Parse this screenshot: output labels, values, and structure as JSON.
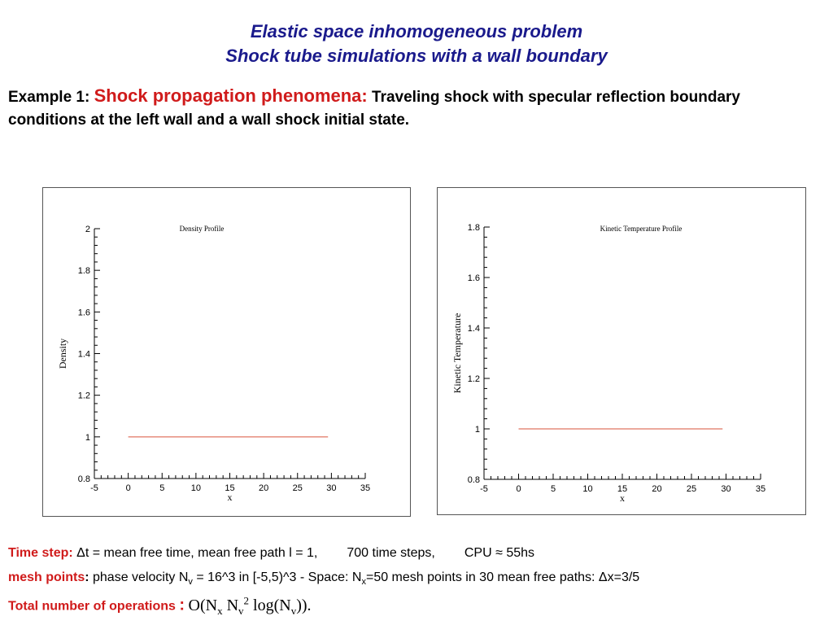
{
  "slide": {
    "title_line1": "Elastic space inhomogeneous problem",
    "title_line2": "Shock tube simulations with a wall boundary",
    "intro_prefix": "Example 1: ",
    "intro_highlight": "Shock propagation phenomena:",
    "intro_rest": "  Traveling shock with specular reflection boundary conditions at the left  wall and a wall shock initial state."
  },
  "footer": {
    "time_step_label": "Time step:",
    "time_step_text": " Δt = mean free time, mean free path l = 1,",
    "time_steps": "700 time steps,",
    "cpu": "CPU ≈ 55hs",
    "mesh_label": "mesh points",
    "mesh_colon": ":",
    "mesh_text_a": " phase velocity  N",
    "mesh_sub_v": "v",
    "mesh_text_b": " = 16^3 in [-5,5)^3  -   Space:  N",
    "mesh_sub_x": "x",
    "mesh_text_c": "=50 mesh points in 30 mean free paths: Δx=3/5",
    "ops_label": "Total number of operations",
    "ops_colon": ":",
    "ops_a": "O(N",
    "ops_sub_x": "x",
    "ops_b": " N",
    "ops_sub_v": "v",
    "ops_sup": "2",
    "ops_c": " log(N",
    "ops_sub_v2": "v",
    "ops_d": "))."
  },
  "chart_data": [
    {
      "type": "line",
      "title": "Density Profile",
      "xlabel": "x",
      "ylabel": "Density",
      "xlim": [
        -5,
        35
      ],
      "ylim": [
        0.8,
        2
      ],
      "xticks": [
        -5,
        0,
        5,
        10,
        15,
        20,
        25,
        30,
        35
      ],
      "yticks": [
        0.8,
        1,
        1.2,
        1.4,
        1.6,
        1.8,
        2
      ],
      "ytick_labels": [
        "0.8",
        "1",
        "1.2",
        "1.4",
        "1.6",
        "1.8",
        "2"
      ],
      "series": [
        {
          "color": "#d9533b",
          "x": [
            0,
            29.5
          ],
          "y": [
            1,
            1
          ]
        }
      ]
    },
    {
      "type": "line",
      "title": "Kinetic Temperature Profile",
      "xlabel": "x",
      "ylabel": "Kinetic Temperature",
      "xlim": [
        -5,
        35
      ],
      "ylim": [
        0.8,
        1.8
      ],
      "xticks": [
        -5,
        0,
        5,
        10,
        15,
        20,
        25,
        30,
        35
      ],
      "yticks": [
        0.8,
        1,
        1.2,
        1.4,
        1.6,
        1.8
      ],
      "ytick_labels": [
        "0.8",
        "1",
        "1.2",
        "1.4",
        "1.6",
        "1.8"
      ],
      "series": [
        {
          "color": "#d9533b",
          "x": [
            0,
            29.5
          ],
          "y": [
            1,
            1
          ]
        }
      ]
    }
  ]
}
